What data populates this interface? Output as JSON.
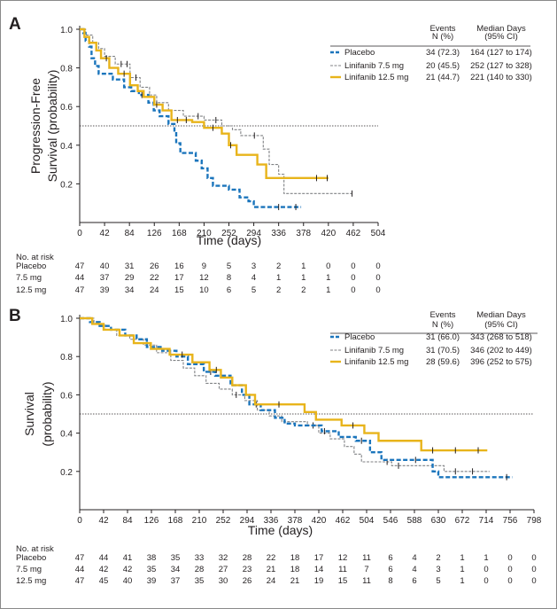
{
  "chart_data": [
    {
      "type": "line",
      "panel_label": "A",
      "xlabel": "Time (days)",
      "ylabel": [
        "Progression-Free",
        "Survival (probability)"
      ],
      "xticks": [
        0,
        42,
        84,
        126,
        168,
        210,
        252,
        294,
        336,
        378,
        420,
        462,
        504
      ],
      "yticks": [
        "0.2",
        "0.4",
        "0.6",
        "0.8",
        "1.0"
      ],
      "xlim": [
        0,
        504
      ],
      "ylim": [
        0,
        1.0
      ],
      "reference_line": 0.5,
      "table_header": {
        "events": [
          "Events",
          "N (%)"
        ],
        "median": [
          "Median Days",
          "(95% CI)"
        ]
      },
      "series": [
        {
          "name": "Placebo",
          "color": "#1b75bc",
          "style": "dashed",
          "events": "34 (72.3)",
          "median": "164 (127 to 174)",
          "steps": [
            [
              0,
              1.0
            ],
            [
              6,
              0.98
            ],
            [
              10,
              0.94
            ],
            [
              16,
              0.91
            ],
            [
              20,
              0.85
            ],
            [
              26,
              0.81
            ],
            [
              32,
              0.77
            ],
            [
              56,
              0.74
            ],
            [
              75,
              0.7
            ],
            [
              87,
              0.68
            ],
            [
              100,
              0.66
            ],
            [
              116,
              0.62
            ],
            [
              125,
              0.58
            ],
            [
              135,
              0.55
            ],
            [
              150,
              0.51
            ],
            [
              160,
              0.47
            ],
            [
              163,
              0.41
            ],
            [
              170,
              0.36
            ],
            [
              196,
              0.32
            ],
            [
              206,
              0.28
            ],
            [
              216,
              0.23
            ],
            [
              225,
              0.19
            ],
            [
              252,
              0.17
            ],
            [
              270,
              0.13
            ],
            [
              285,
              0.11
            ],
            [
              294,
              0.08
            ],
            [
              374,
              0.08
            ]
          ],
          "censors": [
            [
              105,
              0.66
            ],
            [
              336,
              0.08
            ],
            [
              365,
              0.08
            ]
          ]
        },
        {
          "name": "Linifanib 7.5 mg",
          "color": "#808285",
          "style": "dashed",
          "events": "20 (45.5)",
          "median": "252 (127 to 328)",
          "steps": [
            [
              0,
              1.0
            ],
            [
              10,
              0.97
            ],
            [
              22,
              0.93
            ],
            [
              32,
              0.9
            ],
            [
              42,
              0.86
            ],
            [
              60,
              0.82
            ],
            [
              85,
              0.75
            ],
            [
              102,
              0.7
            ],
            [
              118,
              0.66
            ],
            [
              130,
              0.62
            ],
            [
              150,
              0.58
            ],
            [
              175,
              0.55
            ],
            [
              210,
              0.53
            ],
            [
              240,
              0.5
            ],
            [
              258,
              0.48
            ],
            [
              272,
              0.45
            ],
            [
              310,
              0.38
            ],
            [
              320,
              0.3
            ],
            [
              336,
              0.25
            ],
            [
              345,
              0.15
            ],
            [
              460,
              0.15
            ]
          ],
          "censors": [
            [
              70,
              0.82
            ],
            [
              80,
              0.82
            ],
            [
              95,
              0.75
            ],
            [
              200,
              0.55
            ],
            [
              230,
              0.53
            ],
            [
              295,
              0.45
            ],
            [
              460,
              0.15
            ]
          ]
        },
        {
          "name": "Linifanib 12.5 mg",
          "color": "#e8b41b",
          "style": "solid",
          "events": "21 (44.7)",
          "median": "221 (140 to 330)",
          "steps": [
            [
              0,
              1.0
            ],
            [
              8,
              0.96
            ],
            [
              16,
              0.93
            ],
            [
              28,
              0.89
            ],
            [
              36,
              0.85
            ],
            [
              50,
              0.8
            ],
            [
              65,
              0.77
            ],
            [
              85,
              0.71
            ],
            [
              98,
              0.68
            ],
            [
              108,
              0.65
            ],
            [
              126,
              0.61
            ],
            [
              140,
              0.58
            ],
            [
              155,
              0.53
            ],
            [
              190,
              0.52
            ],
            [
              210,
              0.49
            ],
            [
              240,
              0.46
            ],
            [
              252,
              0.4
            ],
            [
              265,
              0.35
            ],
            [
              300,
              0.3
            ],
            [
              315,
              0.23
            ],
            [
              420,
              0.23
            ]
          ],
          "censors": [
            [
              45,
              0.85
            ],
            [
              75,
              0.77
            ],
            [
              130,
              0.61
            ],
            [
              165,
              0.53
            ],
            [
              180,
              0.53
            ],
            [
              225,
              0.49
            ],
            [
              255,
              0.4
            ],
            [
              400,
              0.23
            ],
            [
              418,
              0.23
            ]
          ]
        }
      ],
      "risk_table": {
        "title": "No. at risk",
        "rows": [
          {
            "label": "Placebo",
            "values": [
              "47",
              "40",
              "31",
              "26",
              "16",
              "9",
              "5",
              "3",
              "2",
              "1",
              "0",
              "0",
              "0"
            ]
          },
          {
            "label": "7.5 mg",
            "values": [
              "44",
              "37",
              "29",
              "22",
              "17",
              "12",
              "8",
              "4",
              "1",
              "1",
              "1",
              "0",
              "0"
            ]
          },
          {
            "label": "12.5 mg",
            "values": [
              "47",
              "39",
              "34",
              "24",
              "15",
              "10",
              "6",
              "5",
              "2",
              "2",
              "1",
              "0",
              "0"
            ]
          }
        ]
      }
    },
    {
      "type": "line",
      "panel_label": "B",
      "xlabel": "Time (days)",
      "ylabel": [
        "Survival",
        "(probability)"
      ],
      "xticks": [
        0,
        42,
        84,
        126,
        168,
        210,
        252,
        294,
        336,
        378,
        420,
        462,
        504,
        546,
        588,
        630,
        672,
        714,
        756,
        798
      ],
      "yticks": [
        "0.2",
        "0.4",
        "0.6",
        "0.8",
        "1.0"
      ],
      "xlim": [
        0,
        798
      ],
      "ylim": [
        0,
        1.0
      ],
      "reference_line": 0.5,
      "table_header": {
        "events": [
          "Events",
          "N (%)"
        ],
        "median": [
          "Median Days",
          "(95% CI)"
        ]
      },
      "series": [
        {
          "name": "Placebo",
          "color": "#1b75bc",
          "style": "dashed",
          "events": "31 (66.0)",
          "median": "343 (268 to 518)",
          "steps": [
            [
              0,
              1.0
            ],
            [
              18,
              0.98
            ],
            [
              35,
              0.96
            ],
            [
              55,
              0.94
            ],
            [
              80,
              0.91
            ],
            [
              100,
              0.89
            ],
            [
              118,
              0.85
            ],
            [
              145,
              0.83
            ],
            [
              170,
              0.8
            ],
            [
              190,
              0.76
            ],
            [
              218,
              0.72
            ],
            [
              238,
              0.7
            ],
            [
              265,
              0.65
            ],
            [
              285,
              0.6
            ],
            [
              298,
              0.55
            ],
            [
              318,
              0.52
            ],
            [
              343,
              0.48
            ],
            [
              360,
              0.45
            ],
            [
              378,
              0.44
            ],
            [
              425,
              0.41
            ],
            [
              455,
              0.38
            ],
            [
              485,
              0.36
            ],
            [
              510,
              0.3
            ],
            [
              530,
              0.26
            ],
            [
              620,
              0.2
            ],
            [
              630,
              0.17
            ],
            [
              760,
              0.17
            ]
          ],
          "censors": [
            [
              230,
              0.72
            ],
            [
              310,
              0.55
            ],
            [
              430,
              0.41
            ],
            [
              495,
              0.36
            ],
            [
              590,
              0.26
            ],
            [
              750,
              0.17
            ]
          ]
        },
        {
          "name": "Linifanib 7.5 mg",
          "color": "#808285",
          "style": "dashed",
          "events": "31 (70.5)",
          "median": "346 (202 to 449)",
          "steps": [
            [
              0,
              1.0
            ],
            [
              25,
              0.97
            ],
            [
              45,
              0.94
            ],
            [
              65,
              0.91
            ],
            [
              88,
              0.89
            ],
            [
              112,
              0.86
            ],
            [
              135,
              0.82
            ],
            [
              160,
              0.78
            ],
            [
              182,
              0.74
            ],
            [
              202,
              0.7
            ],
            [
              222,
              0.66
            ],
            [
              245,
              0.63
            ],
            [
              268,
              0.6
            ],
            [
              290,
              0.57
            ],
            [
              312,
              0.52
            ],
            [
              333,
              0.49
            ],
            [
              355,
              0.46
            ],
            [
              400,
              0.44
            ],
            [
              420,
              0.4
            ],
            [
              440,
              0.37
            ],
            [
              465,
              0.33
            ],
            [
              482,
              0.29
            ],
            [
              495,
              0.25
            ],
            [
              548,
              0.23
            ],
            [
              640,
              0.2
            ],
            [
              720,
              0.2
            ]
          ],
          "censors": [
            [
              275,
              0.6
            ],
            [
              410,
              0.44
            ],
            [
              540,
              0.25
            ],
            [
              560,
              0.23
            ],
            [
              660,
              0.2
            ],
            [
              690,
              0.2
            ]
          ]
        },
        {
          "name": "Linifanib 12.5 mg",
          "color": "#e8b41b",
          "style": "solid",
          "events": "28 (59.6)",
          "median": "396 (252 to 575)",
          "steps": [
            [
              0,
              1.0
            ],
            [
              22,
              0.97
            ],
            [
              42,
              0.94
            ],
            [
              70,
              0.91
            ],
            [
              95,
              0.87
            ],
            [
              125,
              0.84
            ],
            [
              158,
              0.81
            ],
            [
              198,
              0.77
            ],
            [
              228,
              0.73
            ],
            [
              248,
              0.69
            ],
            [
              268,
              0.65
            ],
            [
              292,
              0.6
            ],
            [
              308,
              0.55
            ],
            [
              395,
              0.51
            ],
            [
              415,
              0.47
            ],
            [
              460,
              0.44
            ],
            [
              500,
              0.4
            ],
            [
              525,
              0.36
            ],
            [
              600,
              0.31
            ],
            [
              716,
              0.31
            ]
          ],
          "censors": [
            [
              180,
              0.81
            ],
            [
              240,
              0.73
            ],
            [
              350,
              0.55
            ],
            [
              480,
              0.44
            ],
            [
              620,
              0.31
            ],
            [
              660,
              0.31
            ],
            [
              700,
              0.31
            ]
          ]
        }
      ],
      "risk_table": {
        "title": "No. at risk",
        "rows": [
          {
            "label": "Placebo",
            "values": [
              "47",
              "44",
              "41",
              "38",
              "35",
              "33",
              "32",
              "28",
              "22",
              "18",
              "17",
              "12",
              "11",
              "6",
              "4",
              "2",
              "1",
              "1",
              "0",
              "0"
            ]
          },
          {
            "label": "7.5 mg",
            "values": [
              "44",
              "42",
              "42",
              "35",
              "34",
              "28",
              "27",
              "23",
              "21",
              "18",
              "14",
              "11",
              "7",
              "6",
              "4",
              "3",
              "1",
              "0",
              "0",
              "0"
            ]
          },
          {
            "label": "12.5 mg",
            "values": [
              "47",
              "45",
              "40",
              "39",
              "37",
              "35",
              "30",
              "26",
              "24",
              "21",
              "19",
              "15",
              "11",
              "8",
              "6",
              "5",
              "1",
              "0",
              "0",
              "0"
            ]
          }
        ]
      }
    }
  ]
}
